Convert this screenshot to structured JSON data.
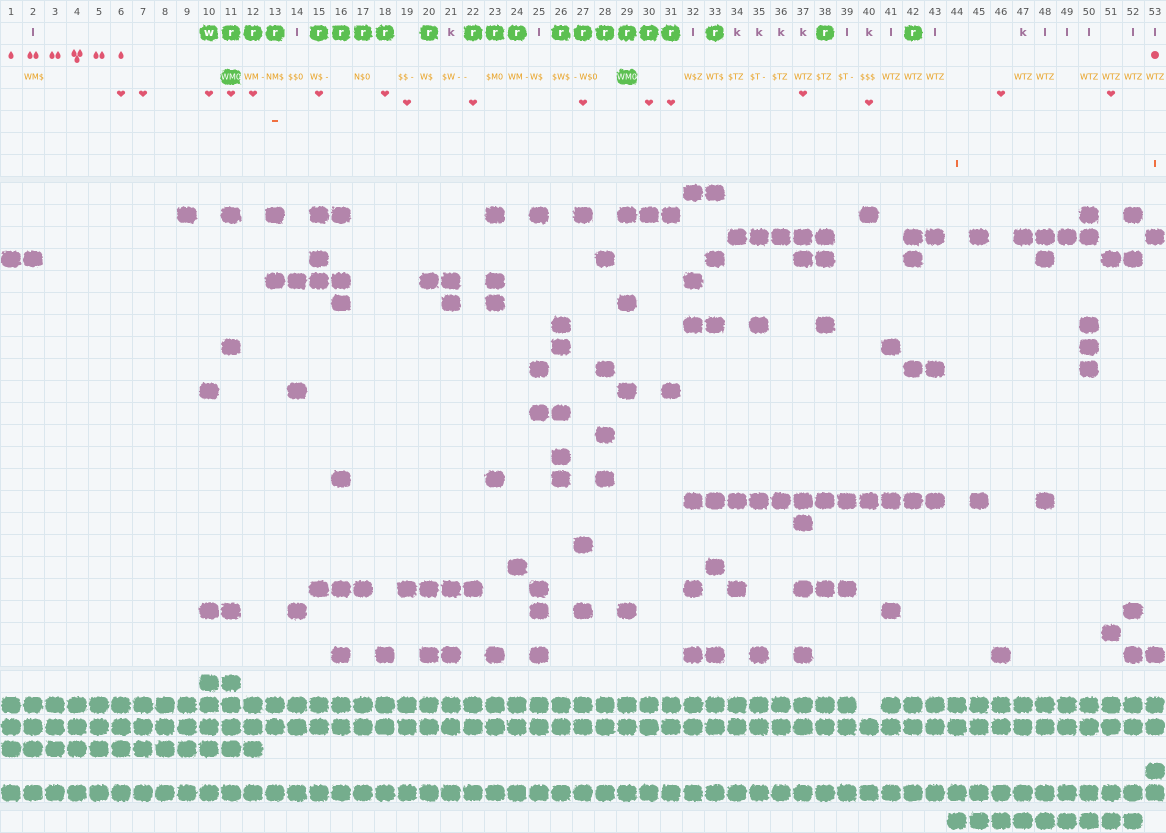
{
  "weeks": [
    1,
    2,
    3,
    4,
    5,
    6,
    7,
    8,
    9,
    10,
    11,
    12,
    13,
    14,
    15,
    16,
    17,
    18,
    19,
    20,
    21,
    22,
    23,
    24,
    25,
    26,
    27,
    28,
    29,
    30,
    31,
    32,
    33,
    34,
    35,
    36,
    37,
    38,
    39,
    40,
    41,
    42,
    43,
    44,
    45,
    46,
    47,
    48,
    49,
    50,
    51,
    52,
    53
  ],
  "letter_row": [
    null,
    "l",
    null,
    null,
    null,
    null,
    null,
    null,
    null,
    {
      "text": "w",
      "highlight": true
    },
    {
      "text": "r",
      "highlight": true
    },
    {
      "text": "r",
      "highlight": true
    },
    {
      "text": "r",
      "highlight": true
    },
    "l",
    {
      "text": "r",
      "highlight": true
    },
    {
      "text": "r",
      "highlight": true
    },
    {
      "text": "r",
      "highlight": true
    },
    {
      "text": "r",
      "highlight": true
    },
    null,
    {
      "text": "r",
      "highlight": true
    },
    "k",
    {
      "text": "r",
      "highlight": true
    },
    {
      "text": "r",
      "highlight": true
    },
    {
      "text": "r",
      "highlight": true
    },
    "l",
    {
      "text": "r",
      "highlight": true
    },
    {
      "text": "r",
      "highlight": true
    },
    {
      "text": "r",
      "highlight": true
    },
    {
      "text": "r",
      "highlight": true
    },
    {
      "text": "r",
      "highlight": true
    },
    {
      "text": "r",
      "highlight": true
    },
    "l",
    {
      "text": "r",
      "highlight": true
    },
    "k",
    "k",
    "k",
    "k",
    {
      "text": "r",
      "highlight": true
    },
    "l",
    "k",
    "l",
    {
      "text": "r",
      "highlight": true
    },
    "l",
    null,
    null,
    null,
    "k",
    "l",
    "l",
    "l",
    null,
    "l",
    "l"
  ],
  "drops": [
    1,
    2,
    2,
    3,
    2,
    1
  ],
  "code_row": [
    null,
    "WM$",
    null,
    null,
    null,
    null,
    null,
    null,
    null,
    null,
    {
      "text": "WM0",
      "highlight": true
    },
    "WM -",
    "NM$",
    "$$0",
    "W$ -",
    null,
    "N$0",
    null,
    "$$ -",
    "W$",
    "$W -",
    "-",
    "$M0",
    "WM -",
    "W$",
    "$W$",
    "- W$0",
    null,
    {
      "text": "WM0",
      "highlight": true
    },
    null,
    null,
    "W$Z",
    "WT$",
    "$TZ",
    "$T -",
    "$TZ",
    "WTZ",
    "$TZ",
    "$T -",
    "$$$",
    "WTZ",
    "WTZ",
    "WTZ",
    null,
    null,
    null,
    "WTZ",
    "WTZ",
    null,
    "WTZ",
    "WTZ",
    "WTZ",
    "WTZ"
  ],
  "hearts_high": [
    6,
    7,
    10,
    11,
    12,
    15,
    18,
    37,
    46,
    51
  ],
  "hearts_low": [
    19,
    22,
    27,
    30,
    31,
    40
  ],
  "purple_rows": [
    [
      32,
      33
    ],
    [
      9,
      11,
      13,
      15,
      16,
      23,
      25,
      27,
      29,
      30,
      31,
      40,
      50,
      52
    ],
    [
      34,
      35,
      36,
      37,
      38,
      42,
      43,
      45,
      47,
      48,
      49,
      50,
      53
    ],
    [
      1,
      2,
      15,
      28,
      33,
      37,
      38,
      42,
      48,
      51,
      52
    ],
    [
      13,
      14,
      15,
      16,
      20,
      21,
      23,
      32
    ],
    [
      16,
      21,
      23,
      29
    ],
    [
      26,
      32,
      33,
      35,
      38,
      50
    ],
    [
      11,
      26,
      41,
      50
    ],
    [
      25,
      28,
      42,
      43,
      50
    ],
    [
      10,
      14,
      29,
      31
    ],
    [
      25,
      26
    ],
    [
      28
    ],
    [
      26
    ],
    [
      16,
      23,
      26,
      28
    ],
    [
      32,
      33,
      34,
      35,
      36,
      37,
      38,
      39,
      40,
      41,
      42,
      43,
      45,
      48
    ],
    [
      37
    ],
    [
      27
    ],
    [
      24,
      33
    ],
    [
      15,
      16,
      17,
      19,
      20,
      21,
      22,
      25,
      32,
      34,
      37,
      38,
      39
    ],
    [
      10,
      11,
      14,
      25,
      27,
      29,
      41,
      52
    ],
    [
      51
    ],
    [
      16,
      18,
      20,
      21,
      23,
      25,
      32,
      33,
      35,
      37,
      46,
      52,
      53
    ]
  ],
  "green_rows": [
    [
      10,
      11
    ],
    [
      1,
      2,
      3,
      4,
      5,
      6,
      7,
      8,
      9,
      10,
      11,
      12,
      13,
      14,
      15,
      16,
      17,
      18,
      19,
      20,
      21,
      22,
      23,
      24,
      25,
      26,
      27,
      28,
      29,
      30,
      31,
      32,
      33,
      34,
      35,
      36,
      37,
      38,
      39,
      41,
      42,
      43,
      44,
      45,
      46,
      47,
      48,
      49,
      50,
      51,
      52,
      53
    ],
    [
      1,
      2,
      3,
      4,
      5,
      6,
      7,
      8,
      9,
      10,
      11,
      12,
      13,
      14,
      15,
      16,
      17,
      18,
      19,
      20,
      21,
      22,
      23,
      24,
      25,
      26,
      27,
      28,
      29,
      30,
      31,
      32,
      33,
      34,
      35,
      36,
      37,
      38,
      39,
      40,
      41,
      42,
      43,
      44,
      45,
      46,
      47,
      48,
      49,
      50,
      51,
      52,
      53
    ],
    [
      1,
      2,
      3,
      4,
      5,
      6,
      7,
      8,
      9,
      10,
      11,
      12
    ],
    [
      53
    ],
    [
      1,
      2,
      3,
      4,
      5,
      6,
      7,
      8,
      9,
      10,
      11,
      12,
      13,
      14,
      15,
      16,
      17,
      18,
      19,
      20,
      21,
      22,
      23,
      24,
      25,
      26,
      27,
      28,
      29,
      30,
      31,
      32,
      33,
      34,
      35,
      36,
      37,
      38,
      39,
      40,
      41,
      42,
      43,
      44,
      45,
      46,
      47,
      48,
      49,
      50,
      51,
      52,
      53
    ]
  ],
  "green_extra_row": [
    44,
    45,
    46,
    47,
    48,
    49,
    50,
    51,
    52
  ]
}
